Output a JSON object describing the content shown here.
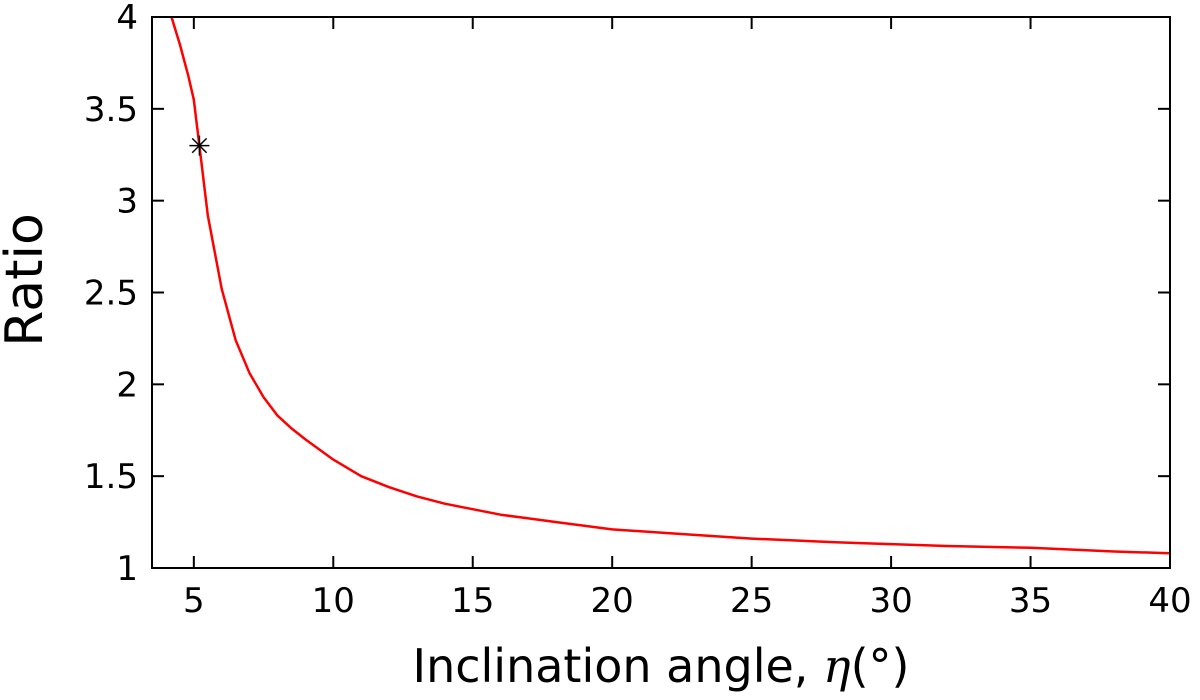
{
  "chart_data": {
    "type": "line",
    "title": "",
    "xlabel": "Inclination angle, ",
    "xlabel_symbol": "η",
    "xlabel_unit": "(°)",
    "ylabel": "Ratio",
    "xlim": [
      3.5,
      40
    ],
    "ylim": [
      1,
      4
    ],
    "xticks": [
      5,
      10,
      15,
      20,
      25,
      30,
      35,
      40
    ],
    "xtick_labels": [
      "5",
      "10",
      "15",
      "20",
      "25",
      "30",
      "35",
      "40"
    ],
    "yticks": [
      1,
      1.5,
      2,
      2.5,
      3,
      3.5,
      4
    ],
    "ytick_labels": [
      "1",
      "1.5",
      "2",
      "2.5",
      "3",
      "3.5",
      "4"
    ],
    "grid": false,
    "legend": "none",
    "series": [
      {
        "color": "#ff0000",
        "style": "line",
        "x": [
          4.2,
          4.5,
          4.8,
          5.0,
          5.2,
          5.5,
          6.0,
          6.5,
          7.0,
          7.5,
          8.0,
          8.5,
          9.0,
          10.0,
          11.0,
          12.0,
          13.0,
          14.0,
          15.0,
          16.0,
          17.0,
          18.0,
          20.0,
          22.0,
          25.0,
          28.0,
          30.0,
          32.0,
          35.0,
          38.0,
          40.0
        ],
        "y": [
          4.0,
          3.85,
          3.68,
          3.55,
          3.3,
          2.92,
          2.52,
          2.24,
          2.06,
          1.93,
          1.83,
          1.76,
          1.7,
          1.59,
          1.5,
          1.44,
          1.39,
          1.35,
          1.32,
          1.29,
          1.27,
          1.25,
          1.21,
          1.19,
          1.16,
          1.14,
          1.13,
          1.12,
          1.11,
          1.09,
          1.08
        ]
      },
      {
        "color": "#000000",
        "style": "marker",
        "marker": "asterisk",
        "x": [
          5.2
        ],
        "y": [
          3.3
        ]
      }
    ]
  }
}
